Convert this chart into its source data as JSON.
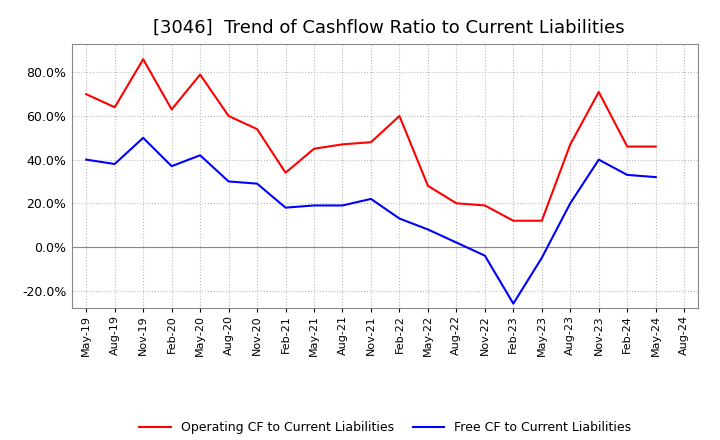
{
  "title": "[3046]  Trend of Cashflow Ratio to Current Liabilities",
  "title_fontsize": 13,
  "x_labels": [
    "May-19",
    "Aug-19",
    "Nov-19",
    "Feb-20",
    "May-20",
    "Aug-20",
    "Nov-20",
    "Feb-21",
    "May-21",
    "Aug-21",
    "Nov-21",
    "Feb-22",
    "May-22",
    "Aug-22",
    "Nov-22",
    "Feb-23",
    "May-23",
    "Aug-23",
    "Nov-23",
    "Feb-24",
    "May-24",
    "Aug-24"
  ],
  "operating_cf": [
    0.7,
    0.64,
    0.86,
    0.63,
    0.79,
    0.6,
    0.54,
    0.34,
    0.45,
    0.47,
    0.48,
    0.6,
    0.28,
    0.2,
    0.19,
    0.12,
    0.12,
    0.47,
    0.71,
    0.46,
    0.46,
    null
  ],
  "free_cf": [
    0.4,
    0.38,
    0.5,
    0.37,
    0.42,
    0.3,
    0.29,
    0.18,
    0.19,
    0.19,
    0.22,
    0.13,
    0.08,
    0.02,
    -0.04,
    -0.26,
    -0.05,
    0.2,
    0.4,
    0.33,
    0.32,
    null
  ],
  "ylim": [
    -0.28,
    0.93
  ],
  "yticks": [
    -0.2,
    0.0,
    0.2,
    0.4,
    0.6,
    0.8
  ],
  "operating_color": "#FF0000",
  "free_color": "#0000FF",
  "background_color": "#FFFFFF",
  "grid_color": "#BBBBBB",
  "legend_labels": [
    "Operating CF to Current Liabilities",
    "Free CF to Current Liabilities"
  ]
}
